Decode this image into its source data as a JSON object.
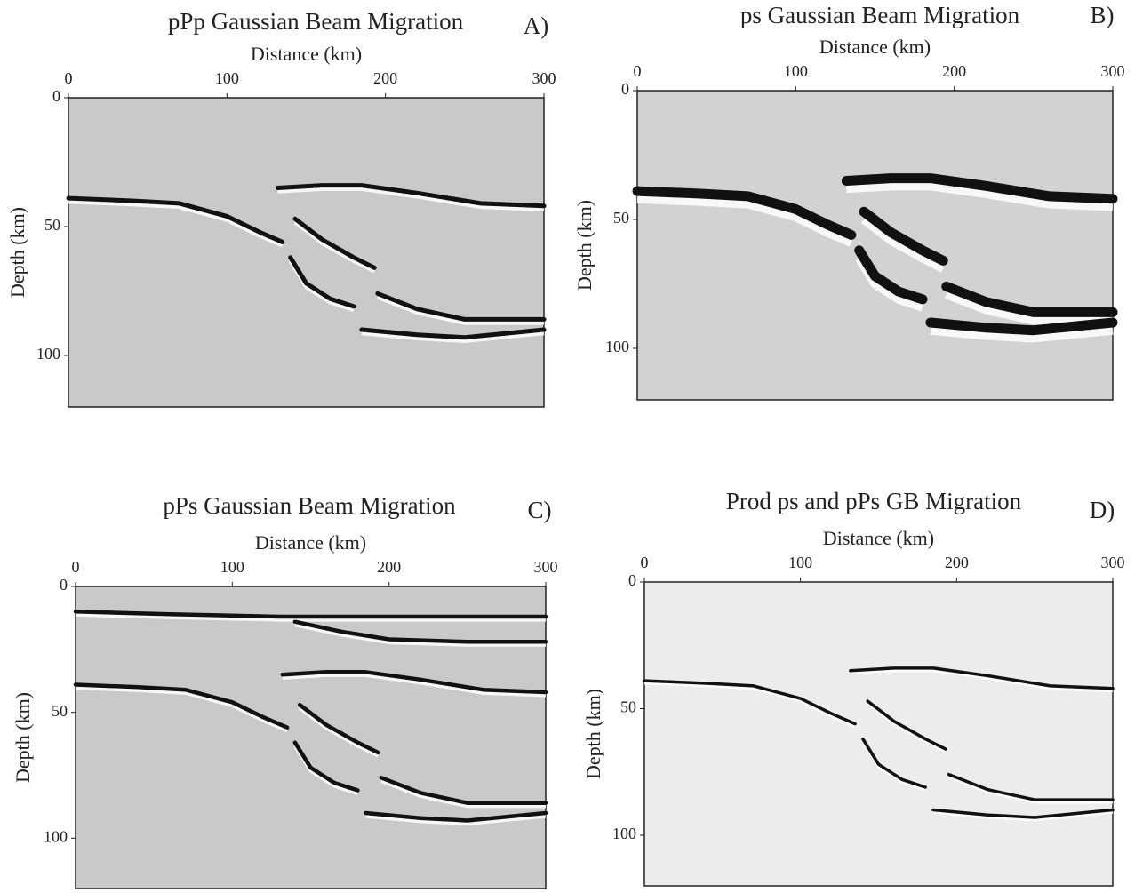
{
  "chart_data": [
    {
      "type": "image",
      "title": "pPp Gaussian Beam Migration",
      "panel_label": "A)",
      "x_label": "Distance (km)",
      "y_label": "Depth (km)",
      "xlim": [
        0,
        300
      ],
      "ylim": [
        0,
        120
      ],
      "xticks": [
        0,
        100,
        200,
        300
      ],
      "yticks": [
        0,
        50,
        100
      ],
      "y_inverted": true,
      "background": "#c9c9c9"
    },
    {
      "type": "image",
      "title": "ps Gaussian Beam Migration",
      "panel_label": "B)",
      "x_label": "Distance (km)",
      "y_label": "Depth (km)",
      "xlim": [
        0,
        300
      ],
      "ylim": [
        0,
        120
      ],
      "xticks": [
        0,
        100,
        200,
        300
      ],
      "yticks": [
        0,
        50,
        100
      ],
      "y_inverted": true,
      "background": "#d2d2d2"
    },
    {
      "type": "image",
      "title": "pPs Gaussian Beam Migration",
      "panel_label": "C)",
      "x_label": "Distance (km)",
      "y_label": "Depth (km)",
      "xlim": [
        0,
        300
      ],
      "ylim": [
        0,
        120
      ],
      "xticks": [
        0,
        100,
        200,
        300
      ],
      "yticks": [
        0,
        50,
        100
      ],
      "y_inverted": true,
      "background": "#c9c9c9"
    },
    {
      "type": "image",
      "title": "Prod ps and pPs GB Migration",
      "panel_label": "D)",
      "x_label": "Distance (km)",
      "y_label": "Depth (km)",
      "xlim": [
        0,
        300
      ],
      "ylim": [
        0,
        120
      ],
      "xticks": [
        0,
        100,
        200,
        300
      ],
      "yticks": [
        0,
        50,
        100
      ],
      "y_inverted": true,
      "background": "#ececec"
    }
  ]
}
